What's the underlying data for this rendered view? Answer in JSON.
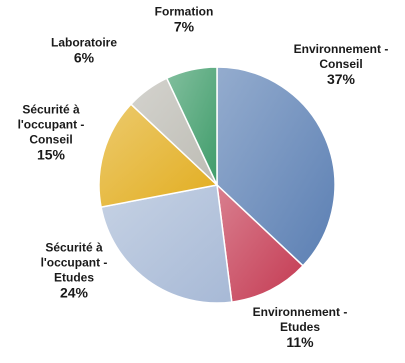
{
  "chart_data": {
    "type": "pie",
    "title": "",
    "slices": [
      {
        "label_lines": [
          "Environnement -",
          "Conseil"
        ],
        "value": 37,
        "pct_label": "37%",
        "color": "#5b7fb3"
      },
      {
        "label_lines": [
          "Environnement -",
          "Etudes"
        ],
        "value": 11,
        "pct_label": "11%",
        "color": "#c43a52"
      },
      {
        "label_lines": [
          "Sécurité à",
          "l'occupant -",
          "Etudes"
        ],
        "value": 24,
        "pct_label": "24%",
        "color": "#a7b9d6"
      },
      {
        "label_lines": [
          "Sécurité à",
          "l'occupant -",
          "Conseil"
        ],
        "value": 15,
        "pct_label": "15%",
        "color": "#e2ad1f"
      },
      {
        "label_lines": [
          "Laboratoire"
        ],
        "value": 6,
        "pct_label": "6%",
        "color": "#bdbcb4"
      },
      {
        "label_lines": [
          "Formation"
        ],
        "value": 7,
        "pct_label": "7%",
        "color": "#3f9c6a"
      }
    ],
    "legend": "none",
    "labels": "outside"
  }
}
